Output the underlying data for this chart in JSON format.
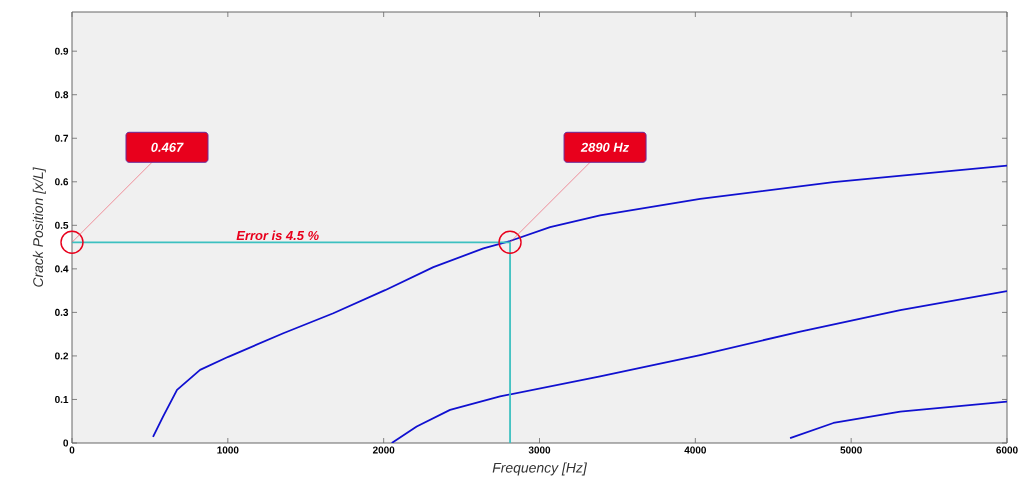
{
  "chart_data": {
    "type": "line",
    "xlabel": "Frequency [Hz]",
    "ylabel": "Crack Position [x/L]",
    "xlim": [
      0,
      6000
    ],
    "ylim": [
      0,
      0.99
    ],
    "xticks": [
      0,
      1000,
      2000,
      3000,
      4000,
      5000,
      6000
    ],
    "yticks": [
      0,
      0.1,
      0.2,
      0.3,
      0.4,
      0.5,
      0.6,
      0.7,
      0.8,
      0.9
    ],
    "series": [
      {
        "color": "#1010d0",
        "x": [
          520,
          585,
          674,
          822,
          1003,
          1356,
          1677,
          2009,
          2319,
          2640,
          2811,
          3068,
          3389,
          4031,
          4886,
          6000
        ],
        "values": [
          0.014,
          0.061,
          0.122,
          0.168,
          0.198,
          0.252,
          0.298,
          0.351,
          0.404,
          0.447,
          0.464,
          0.496,
          0.523,
          0.561,
          0.599,
          0.637
        ]
      },
      {
        "color": "#1010d0",
        "x": [
          2052,
          2212,
          2426,
          2747,
          3389,
          4031,
          4673,
          5315,
          6000
        ],
        "values": [
          0,
          0.038,
          0.076,
          0.107,
          0.153,
          0.202,
          0.256,
          0.305,
          0.349
        ]
      },
      {
        "color": "#1010d0",
        "x": [
          4608,
          4886,
          5315,
          6000
        ],
        "values": [
          0.011,
          0.046,
          0.072,
          0.095
        ]
      },
      {
        "color": "#3cc0c0",
        "x": [
          0,
          2811
        ],
        "values": [
          0.461,
          0.461
        ],
        "marker": "circle"
      },
      {
        "color": "#3cc0c0",
        "x": [
          2811,
          2811
        ],
        "values": [
          0,
          0.461
        ]
      }
    ],
    "annotations": [
      {
        "text": "0.467",
        "x": 0,
        "y": 0.461
      },
      {
        "text": "2890 Hz",
        "x": 2811,
        "y": 0.461
      },
      {
        "text": "Error is 4.5 %",
        "x": 1320,
        "y": 0.461
      }
    ]
  }
}
